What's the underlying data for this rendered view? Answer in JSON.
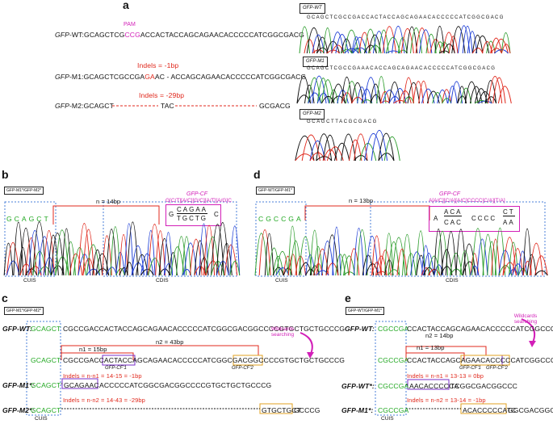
{
  "panels": {
    "a": "a",
    "b": "b",
    "c": "c",
    "d": "d",
    "e": "e"
  },
  "a": {
    "pam": "PAM",
    "wt": {
      "name": "GFP",
      "suffix": "-WT:",
      "seq1": "GCAGCTCG",
      "seq2": "CCG",
      "seq3": "ACCACTACCAGCAGAACACCCCCATCGGCGACG"
    },
    "indel1": "Indels = -1bp",
    "m1": {
      "name": "GFP",
      "suffix": "-M1:",
      "seq1": "GCAGCTCGCCGA",
      "seq2": "GA",
      "seq3": "AC - ACCAGCAGAACACCCCCATCGGCGACG"
    },
    "indel2": "Indels = -29bp",
    "m2": {
      "name": "GFP",
      "suffix": "-M2:",
      "seq1": "GCAGCT",
      "seq2": "TAC",
      "seq3": "GCGACG"
    },
    "trace_labels": [
      "GFP-WT",
      "GFP-M1",
      "GFP-M2"
    ],
    "trace_seqs": [
      "GCAGCTCGCCGACCACTACCAGCAGAACACCCCCATCGGCGACG",
      "GCAGCTCGCCGAAACACCAGCAGAACACCCCCATCGGCGACG",
      "GCAGCTTACGCGACG"
    ]
  },
  "b": {
    "tag": "GFP-M1*/GFP-M2*",
    "cuis_seq": "GCAGCT",
    "n": "n = 14bp",
    "cf_title": "GFP-CF",
    "cf_seq": "G[C/T][A/C][G/C][A/T][A/G]C",
    "box_left": "G",
    "box_top": "CAGAA",
    "box_bot": "TGCTG",
    "box_right": "C",
    "cuis": "CUIS",
    "cdis": "CDIS"
  },
  "d": {
    "tag": "GFP-WT/GFP-M1*",
    "cuis_seq": "CGCCGA",
    "n": "n = 13bp",
    "cf_title": "GFP-CF",
    "cf_seq": "A[A/C][C/A][A/C]CCCC[C/A][T/A]",
    "box_left": "A",
    "box_top": "ACA",
    "box_bot": "CAC",
    "box_mid": "CCCC",
    "box_rt": "CT",
    "box_rb": "AA",
    "cuis": "CUIS",
    "cdis": "CDIS"
  },
  "c": {
    "tag": "GFP-M1*/GFP-M2*",
    "wt_label": "GFP-WT:",
    "wt_cuis": "GCAGCT",
    "wt_seq": "CGCCGACCACTACCAGCAGAACACCCCCATCGGCGACGGCCCCGTGCTGCTGCCCG",
    "n2": "n2 = 43bp",
    "n1": "n1 = 15bp",
    "r2_cuis": "GCAGCT",
    "r2_a": "CGCCGACCACTACCAG",
    "r2_b": "CAGAAC",
    "r2_c": "ACCCCCATCGGCGACGGCCCC",
    "r2_d": "GTGCTGCT",
    "r2_e": "GCCCG",
    "cf1": "GFP-CF'1",
    "cf2": "GFP-CF'2",
    "wild": "Wildcards searching",
    "ind1": "Indels = n-n1 = 14-15 = -1bp",
    "m1_label": "GFP-M1*:",
    "m1_cuis": "GCAGCT",
    "m1_box": "GCAGAAC",
    "m1_seq": "ACCCCCATCGGCGACGGCCCCGTGCTGCTGCCCG",
    "ind2": "Indels = n-n2 = 14-43 = -29bp",
    "m2_label": "GFP-M2*:",
    "m2_cuis": "GCAGCT",
    "m2_box": "GTGCTGCT",
    "m2_seq": "GCCCG",
    "cuis": "CUIS"
  },
  "e": {
    "tag": "GFP-WT/GFP-M1*",
    "wt_label": "GFP-WT:",
    "wt_cuis": "CGCCGA",
    "wt_seq": "CCACTACCAGCAGAACACCCCCATCGGCCC",
    "n2": "n2 = 14bp",
    "n1": "n1 = 13bp",
    "r2_cuis": "CGCCGA",
    "r2_a": "CCACTACCAGCAG",
    "r2_b": "AACACCCCCA",
    "r2_c": "TCGGCCC",
    "cf1": "GFP-CF'1",
    "cf2": "GFP-CF'2",
    "wild": "Wildcards searching",
    "ind1": "Indels = n-n1 = 13-13 = 0bp",
    "wt2_label": "GFP-WT*:",
    "wt2_cuis": "CGCCGA",
    "wt2_box": "AACACCCCCA",
    "wt2_seq": "TCGGCGACGGCCC",
    "ind2": "Indels = n-n2 = 13-14 = -1bp",
    "m1_label": "GFP-M1*:",
    "m1_cuis": "CGCCGA",
    "m1_box": "ACACCCCCATC",
    "m1_seq": "GGCGACGGCCC",
    "cuis": "CUIS"
  },
  "colors": {
    "green": "#22a822",
    "red": "#e0281c",
    "magenta": "#d21fb8",
    "blue_dash": "#4a7fd8",
    "purple": "#7a2fc8",
    "orange": "#e0a020"
  }
}
